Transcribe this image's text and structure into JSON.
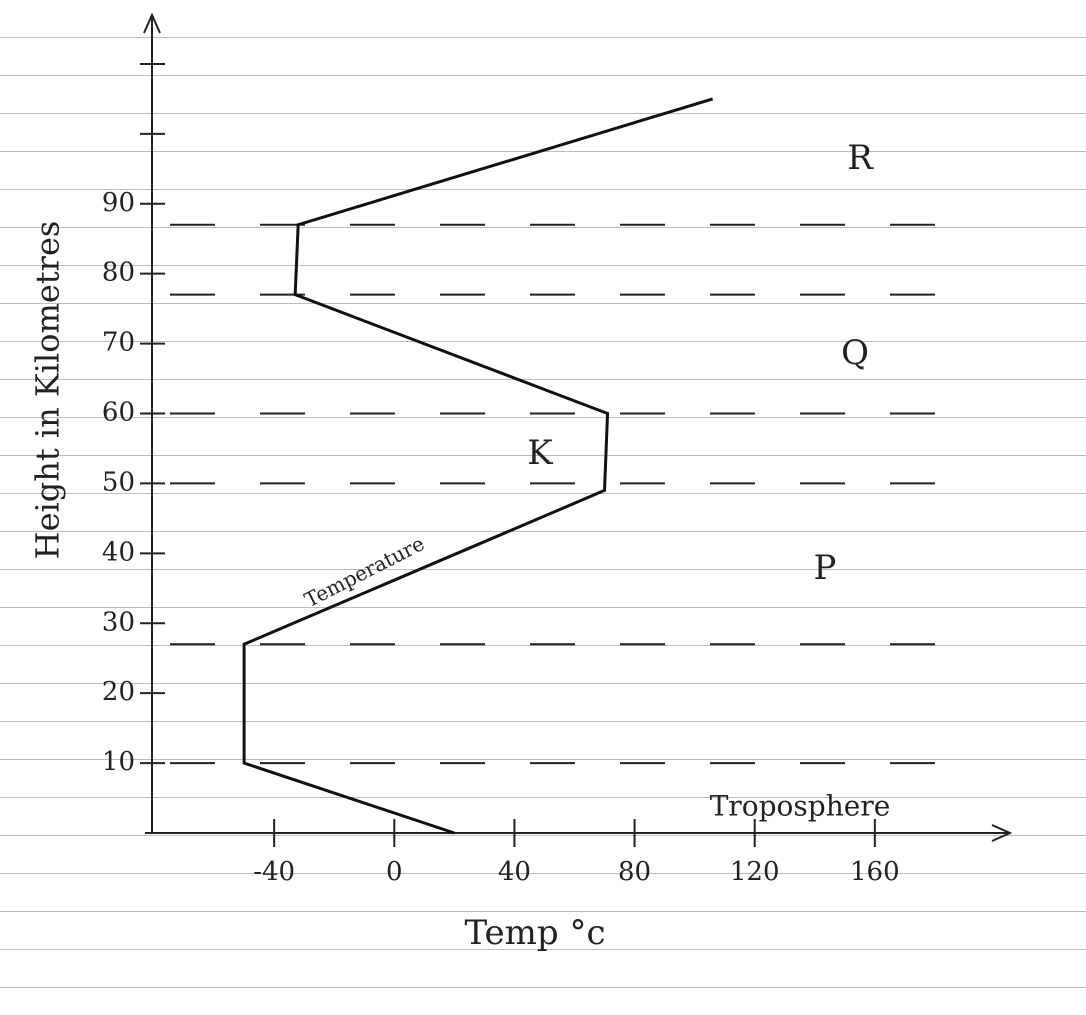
{
  "chart_data": {
    "type": "line",
    "x_label": "Temp °c",
    "y_label": "Height in Kilometres",
    "x": [
      20,
      -50,
      -50,
      70,
      71,
      -33,
      -32,
      106
    ],
    "values": [
      0,
      10,
      27,
      49,
      60,
      77,
      87,
      105
    ],
    "color": "#111111",
    "xlim": [
      -83,
      205
    ],
    "ylim": [
      0,
      117
    ],
    "xticks": [
      -40,
      0,
      40,
      80,
      120,
      160
    ],
    "yticks": [
      10,
      20,
      30,
      40,
      50,
      60,
      70,
      80,
      90
    ],
    "unlabeled_yticks": [
      100,
      110
    ],
    "boundaries": [
      87,
      77,
      60,
      50,
      27,
      10
    ],
    "annotations": [
      "R",
      "Q",
      "K",
      "P",
      "Troposphere",
      "Temperature"
    ]
  }
}
